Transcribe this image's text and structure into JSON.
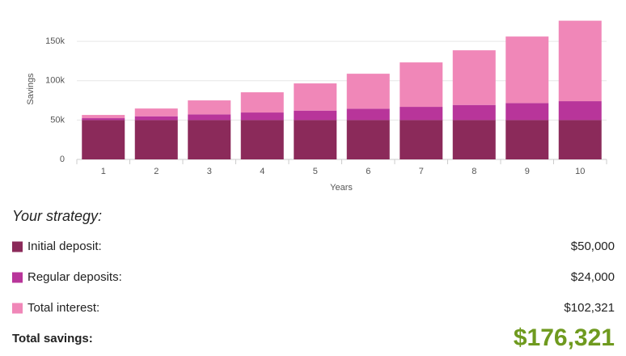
{
  "chart_data": {
    "type": "stacked-bar",
    "y_label": "Savings",
    "x_label": "Years",
    "categories": [
      "1",
      "2",
      "3",
      "4",
      "5",
      "6",
      "7",
      "8",
      "9",
      "10"
    ],
    "series": [
      {
        "color": "#8b2a5a",
        "values": [
          50000,
          50000,
          50000,
          50000,
          50000,
          50000,
          50000,
          50000,
          50000,
          50000
        ]
      },
      {
        "color": "#b8359a",
        "values": [
          2400,
          4800,
          7200,
          9600,
          12000,
          14400,
          16800,
          19200,
          21600,
          24000
        ]
      },
      {
        "color": "#f087b8",
        "values": [
          4100,
          9900,
          17800,
          25700,
          34600,
          44500,
          56500,
          69500,
          84600,
          102321
        ]
      }
    ],
    "ylim": [
      0,
      180000
    ],
    "yticks": [
      0,
      {
        "value": 50000,
        "label": "50k"
      },
      {
        "value": 100000,
        "label": "100k"
      },
      {
        "value": 150000,
        "label": "150k"
      }
    ],
    "grid": true
  },
  "summary": {
    "title": "Your strategy:",
    "items": [
      {
        "label": "Initial deposit:",
        "value": "$50,000"
      },
      {
        "label": "Regular deposits:",
        "value": "$24,000"
      },
      {
        "label": "Total interest:",
        "value": "$102,321"
      }
    ],
    "total_label": "Total savings:",
    "total_value": "$176,321",
    "total_color": "#6f9a1f"
  }
}
